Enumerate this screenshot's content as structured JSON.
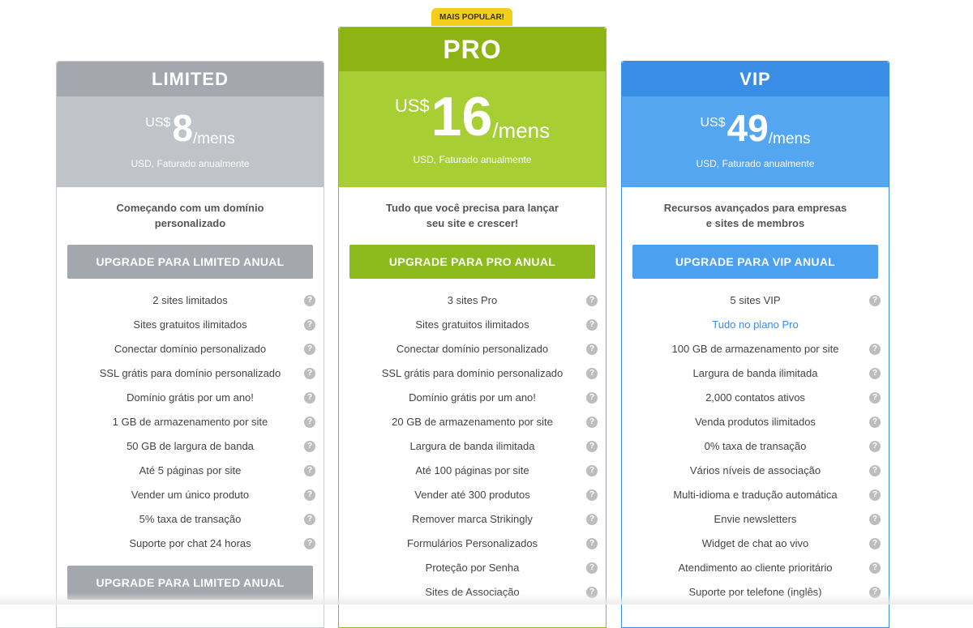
{
  "badge": "MAIS POPULAR!",
  "plans": {
    "limited": {
      "name": "LIMITED",
      "currency": "US$",
      "amount": "8",
      "per": "/mens",
      "billing": "USD, Faturado anualmente",
      "description": "Começando com um domínio personalizado",
      "button": "UPGRADE PARA LIMITED ANUAL",
      "bottom_button": "UPGRADE PARA LIMITED ANUAL",
      "features": [
        "2 sites limitados",
        "Sites gratuitos ilimitados",
        "Conectar domínio personalizado",
        "SSL grátis para domínio personalizado",
        "Domínio grátis por um ano!",
        "1 GB de armazenamento por site",
        "50 GB de largura de banda",
        "Até 5 páginas por site",
        "Vender um único produto",
        "5% taxa de transação",
        "Suporte por chat 24 horas"
      ]
    },
    "pro": {
      "name": "PRO",
      "currency": "US$",
      "amount": "16",
      "per": "/mens",
      "billing": "USD, Faturado anualmente",
      "description": "Tudo que você precisa para lançar seu site e crescer!",
      "button": "UPGRADE PARA PRO ANUAL",
      "features": [
        "3 sites Pro",
        "Sites gratuitos ilimitados",
        "Conectar domínio personalizado",
        "SSL grátis para domínio personalizado",
        "Domínio grátis por um ano!",
        "20 GB de armazenamento por site",
        "Largura de banda ilimitada",
        "Até 100 páginas por site",
        "Vender até 300 produtos",
        "Remover marca Strikingly",
        "Formulários Personalizados",
        "Proteção por Senha",
        "Sites de Associação"
      ]
    },
    "vip": {
      "name": "VIP",
      "currency": "US$",
      "amount": "49",
      "per": "/mens",
      "billing": "USD, Faturado anualmente",
      "description": "Recursos avançados para empresas e sites de membros",
      "button": "UPGRADE PARA VIP ANUAL",
      "link_feature": "Tudo no plano Pro",
      "features": [
        "5 sites VIP",
        "Tudo no plano Pro",
        "100 GB de armazenamento por site",
        "Largura de banda ilimitada",
        "2,000 contatos ativos",
        "Venda produtos ilimitados",
        "0% taxa de transação",
        "Vários níveis de associação",
        "Multi-idioma e tradução automática",
        "Envie newsletters",
        "Widget de chat ao vivo",
        "Atendimento ao cliente prioritário",
        "Suporte por telefone (inglês)"
      ]
    }
  },
  "help_icon_glyph": "?"
}
